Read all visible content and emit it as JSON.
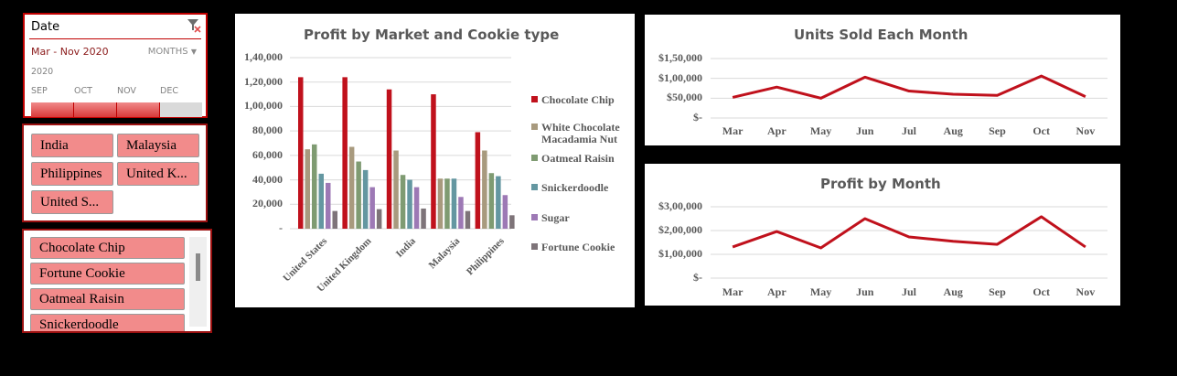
{
  "date_slicer": {
    "header": "Date",
    "clear_filter_icon": "clear-filter-icon",
    "selected_range": "Mar - Nov 2020",
    "time_level": "MONTHS",
    "year": "2020",
    "months": [
      "SEP",
      "OCT",
      "NOV",
      "DEC"
    ],
    "month_selected": [
      true,
      true,
      true,
      false
    ]
  },
  "market_slicer": {
    "items": [
      "India",
      "Malaysia",
      "Philippines",
      "United K...",
      "United S..."
    ]
  },
  "cookie_slicer": {
    "items": [
      "Chocolate Chip",
      "Fortune Cookie",
      "Oatmeal Raisin",
      "Snickerdoodle"
    ]
  },
  "colors": {
    "accent": "#c00000",
    "line": "#c0111c",
    "slicer_button": "#f28b8b",
    "series": [
      "#c0111c",
      "#a89a7e",
      "#7f9b72",
      "#6497a1",
      "#9d79b5",
      "#7e7479"
    ]
  },
  "chart_data": [
    {
      "type": "bar",
      "title": "Profit by Market and Cookie type",
      "categories": [
        "United States",
        "United Kingdom",
        "India",
        "Malaysia",
        "Philippines"
      ],
      "series": [
        {
          "name": "Chocolate Chip",
          "values": [
            124000,
            124000,
            114000,
            110000,
            79000
          ]
        },
        {
          "name": "White Chocolate Macadamia Nut",
          "values": [
            65000,
            67000,
            64000,
            41000,
            64000
          ]
        },
        {
          "name": "Oatmeal Raisin",
          "values": [
            69000,
            55000,
            44000,
            41000,
            45500
          ]
        },
        {
          "name": "Snickerdoodle",
          "values": [
            45000,
            48000,
            40000,
            41000,
            43000
          ]
        },
        {
          "name": "Sugar",
          "values": [
            37500,
            34000,
            34000,
            26000,
            27500
          ]
        },
        {
          "name": "Fortune Cookie",
          "values": [
            14500,
            16000,
            16500,
            14500,
            11000
          ]
        }
      ],
      "yticks": [
        "-",
        "20,000",
        "40,000",
        "60,000",
        "80,000",
        "1,00,000",
        "1,20,000",
        "1,40,000"
      ],
      "ylim": [
        0,
        140000
      ],
      "legend_position": "right",
      "grid": true
    },
    {
      "type": "line",
      "title": "Units Sold Each Month",
      "categories": [
        "Mar",
        "Apr",
        "May",
        "Jun",
        "Jul",
        "Aug",
        "Sep",
        "Oct",
        "Nov"
      ],
      "values": [
        52000,
        78000,
        50000,
        103000,
        68000,
        60000,
        57000,
        106000,
        54000
      ],
      "yticks": [
        "$-",
        "$50,000",
        "$1,00,000",
        "$1,50,000"
      ],
      "ylim": [
        0,
        150000
      ],
      "grid": true
    },
    {
      "type": "line",
      "title": "Profit by Month",
      "categories": [
        "Mar",
        "Apr",
        "May",
        "Jun",
        "Jul",
        "Aug",
        "Sep",
        "Oct",
        "Nov"
      ],
      "values": [
        131000,
        196000,
        127000,
        250000,
        173000,
        155000,
        142000,
        258000,
        131000
      ],
      "yticks": [
        "$-",
        "$1,00,000",
        "$2,00,000",
        "$3,00,000"
      ],
      "ylim": [
        0,
        300000
      ],
      "grid": true
    }
  ]
}
